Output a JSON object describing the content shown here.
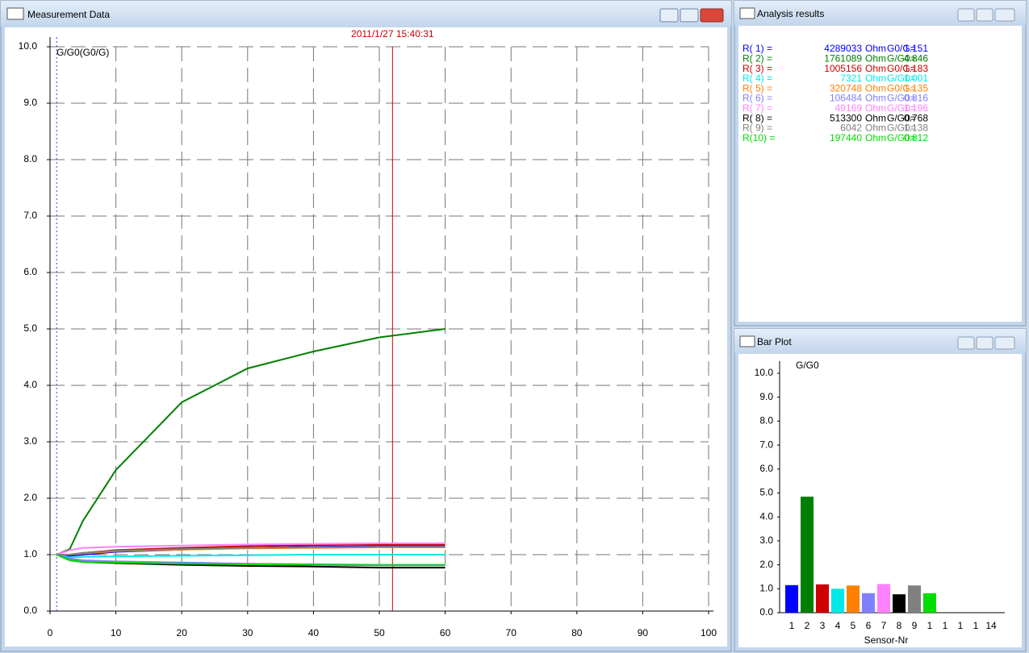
{
  "measurement_window": {
    "title": "Measurement Data",
    "chart": {
      "type": "line",
      "y_label": "G/G0(G0/G)",
      "cursor_label": "2011/1/27 15:40:31",
      "cursor_x": 52,
      "marker_x": 1,
      "xlim": [
        0,
        100
      ],
      "xticks": [
        0,
        10,
        20,
        30,
        40,
        50,
        60,
        70,
        80,
        90,
        100
      ],
      "ylim": [
        0,
        10
      ],
      "yticks": [
        {
          "value": 0,
          "label": "0.0"
        },
        {
          "value": 1,
          "label": "1.0"
        },
        {
          "value": 2,
          "label": "2.0"
        },
        {
          "value": 3,
          "label": "3.0"
        },
        {
          "value": 4,
          "label": "4.0"
        },
        {
          "value": 5,
          "label": "5.0"
        },
        {
          "value": 6,
          "label": "6.0"
        },
        {
          "value": 7,
          "label": "7.0"
        },
        {
          "value": 8,
          "label": "8.0"
        },
        {
          "value": 9,
          "label": "9.0"
        },
        {
          "value": 10,
          "label": "10.0"
        }
      ],
      "grid": true,
      "x": [
        1,
        3,
        5,
        10,
        20,
        30,
        40,
        50,
        60
      ],
      "series": [
        {
          "color": "#0000ff",
          "values": [
            1,
            0.98,
            1.0,
            1.05,
            1.09,
            1.12,
            1.14,
            1.15,
            1.15
          ]
        },
        {
          "color": "#008000",
          "values": [
            1,
            1.1,
            1.6,
            2.5,
            3.7,
            4.3,
            4.6,
            4.85,
            5.0
          ]
        },
        {
          "color": "#cc0000",
          "values": [
            1,
            1.0,
            1.03,
            1.08,
            1.12,
            1.15,
            1.17,
            1.18,
            1.18
          ]
        },
        {
          "color": "#00e8e8",
          "values": [
            1,
            0.95,
            0.96,
            0.97,
            0.98,
            0.99,
            1.0,
            1.0,
            1.0
          ]
        },
        {
          "color": "#ff8000",
          "values": [
            1,
            1.0,
            1.02,
            1.06,
            1.09,
            1.11,
            1.12,
            1.13,
            1.13
          ]
        },
        {
          "color": "#8080ff",
          "values": [
            1,
            0.93,
            0.9,
            0.88,
            0.86,
            0.84,
            0.83,
            0.82,
            0.82
          ]
        },
        {
          "color": "#ff80ff",
          "values": [
            1,
            1.08,
            1.12,
            1.14,
            1.16,
            1.18,
            1.19,
            1.2,
            1.2
          ]
        },
        {
          "color": "#000000",
          "values": [
            1,
            0.9,
            0.87,
            0.85,
            0.82,
            0.8,
            0.79,
            0.77,
            0.77
          ]
        },
        {
          "color": "#808080",
          "values": [
            1,
            1.0,
            1.03,
            1.07,
            1.1,
            1.12,
            1.13,
            1.14,
            1.14
          ]
        },
        {
          "color": "#00dd00",
          "values": [
            1,
            0.9,
            0.87,
            0.86,
            0.84,
            0.83,
            0.82,
            0.81,
            0.81
          ]
        }
      ]
    }
  },
  "analysis_window": {
    "title": "Analysis results",
    "rows": [
      {
        "label": "R( 1) =",
        "resistance": 4289033,
        "unit": "Ohm",
        "ratio_label": "G0/G=",
        "ratio": 1.151,
        "color": "#0000ff"
      },
      {
        "label": "R( 2) =",
        "resistance": 1761089,
        "unit": "Ohm",
        "ratio_label": "G/G0=",
        "ratio": 4.846,
        "color": "#008000"
      },
      {
        "label": "R( 3) =",
        "resistance": 1005156,
        "unit": "Ohm",
        "ratio_label": "G0/G=",
        "ratio": 1.183,
        "color": "#cc0000"
      },
      {
        "label": "R( 4) =",
        "resistance": 7321,
        "unit": "Ohm",
        "ratio_label": "G/G0=",
        "ratio": 1.001,
        "color": "#00e8e8"
      },
      {
        "label": "R( 5) =",
        "resistance": 320748,
        "unit": "Ohm",
        "ratio_label": "G0/G=",
        "ratio": 1.135,
        "color": "#ff8000"
      },
      {
        "label": "R( 6) =",
        "resistance": 106484,
        "unit": "Ohm",
        "ratio_label": "G/G0=",
        "ratio": 0.816,
        "color": "#8080ff"
      },
      {
        "label": "R( 7) =",
        "resistance": 49169,
        "unit": "Ohm",
        "ratio_label": "G/G0=",
        "ratio": 1.196,
        "color": "#ff80ff"
      },
      {
        "label": "R( 8) =",
        "resistance": 513300,
        "unit": "Ohm",
        "ratio_label": "G/G0=",
        "ratio": 0.768,
        "color": "#000000"
      },
      {
        "label": "R( 9) =",
        "resistance": 6042,
        "unit": "Ohm",
        "ratio_label": "G/G0=",
        "ratio": 1.138,
        "color": "#808080"
      },
      {
        "label": "R(10) =",
        "resistance": 197440,
        "unit": "Ohm",
        "ratio_label": "G/G0=",
        "ratio": 0.812,
        "color": "#00dd00"
      }
    ]
  },
  "bar_window": {
    "title": "Bar Plot",
    "chart": {
      "type": "bar",
      "y_label": "G/G0",
      "x_label": "Sensor-Nr",
      "categories": [
        "1",
        "2",
        "3",
        "4",
        "5",
        "6",
        "7",
        "8",
        "9",
        "1",
        "1",
        "1",
        "1",
        "14"
      ],
      "values": [
        1.151,
        4.846,
        1.183,
        1.001,
        1.135,
        0.816,
        1.196,
        0.768,
        1.138,
        0.812,
        null,
        null,
        null,
        null
      ],
      "colors": [
        "#0000ff",
        "#008000",
        "#cc0000",
        "#00e8e8",
        "#ff8000",
        "#8080ff",
        "#ff80ff",
        "#000000",
        "#808080",
        "#00dd00",
        null,
        null,
        null,
        null
      ],
      "ylim": [
        0,
        10
      ],
      "yticks": [
        {
          "value": 0,
          "label": "0.0"
        },
        {
          "value": 1,
          "label": "1.0"
        },
        {
          "value": 2,
          "label": "2.0"
        },
        {
          "value": 3,
          "label": "3.0"
        },
        {
          "value": 4,
          "label": "4.0"
        },
        {
          "value": 5,
          "label": "5.0"
        },
        {
          "value": 6,
          "label": "6.0"
        },
        {
          "value": 7,
          "label": "7.0"
        },
        {
          "value": 8,
          "label": "8.0"
        },
        {
          "value": 9,
          "label": "9.0"
        },
        {
          "value": 10,
          "label": "10.0"
        }
      ]
    }
  }
}
